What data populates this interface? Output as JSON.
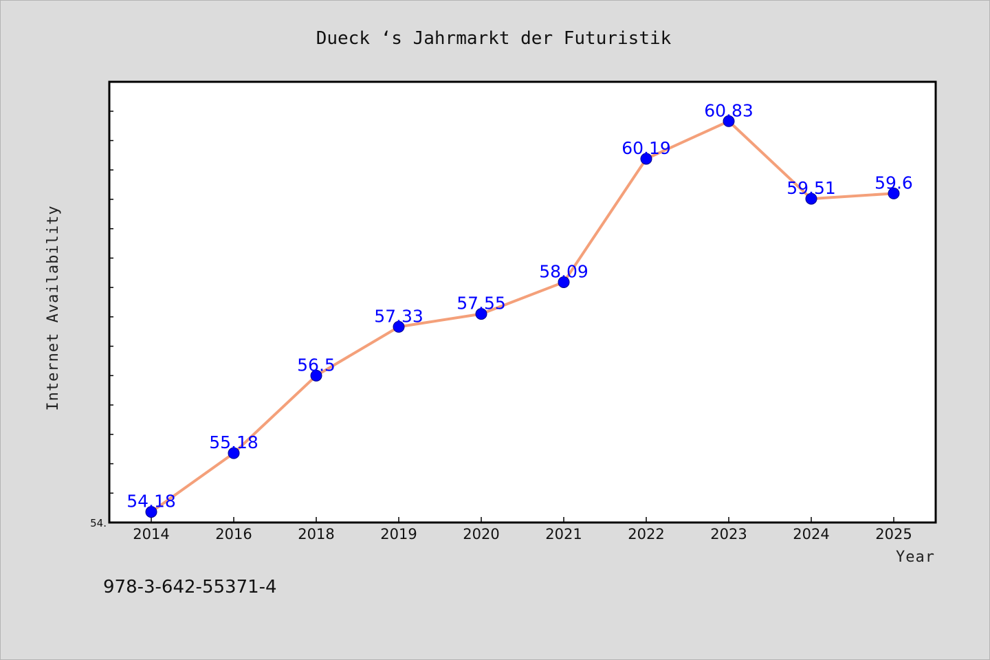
{
  "chart_data": {
    "type": "line",
    "title": "Dueck ‘s Jahrmarkt der Futuristik",
    "xlabel": "Year",
    "ylabel": "Internet Availability",
    "categories": [
      "2014",
      "2016",
      "2018",
      "2019",
      "2020",
      "2021",
      "2022",
      "2023",
      "2024",
      "2025"
    ],
    "series": [
      {
        "values": [
          54.18,
          55.18,
          56.5,
          57.33,
          57.55,
          58.09,
          60.19,
          60.83,
          59.51,
          59.6
        ],
        "labels": [
          "54.18",
          "55.18",
          "56.5",
          "57.33",
          "57.55",
          "58.09",
          "60.19",
          "60.83",
          "59.51",
          "59.6"
        ]
      }
    ],
    "ylim": [
      54.0,
      61.5
    ],
    "ytick_label": "54.",
    "grid": false,
    "legend": "none",
    "colors": {
      "line": "#f4a07a",
      "marker": "#0000ff",
      "data_label": "#0000ff"
    }
  },
  "footer": {
    "isbn": "978-3-642-55371-4"
  }
}
